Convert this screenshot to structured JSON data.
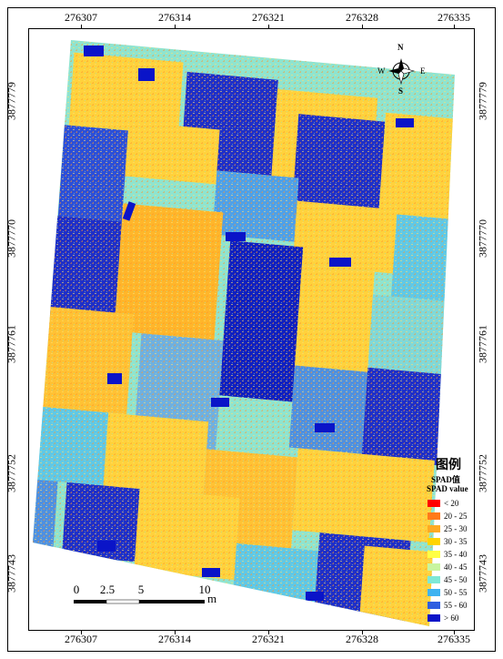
{
  "map": {
    "x_ticks": [
      "276307",
      "276314",
      "276321",
      "276328",
      "276335"
    ],
    "y_ticks": [
      "3877779",
      "3877770",
      "3877761",
      "3877752",
      "3877743"
    ]
  },
  "north_arrow": {
    "n": "N",
    "s": "S",
    "e": "E",
    "w": "W"
  },
  "legend": {
    "title": "图例",
    "subtitle_cn": "SPAD值",
    "subtitle_en": "SPAD value",
    "items": [
      {
        "label": "< 20",
        "color": "#ff0000"
      },
      {
        "label": "20 - 25",
        "color": "#ff7a1a"
      },
      {
        "label": "25 - 30",
        "color": "#ffaa22"
      },
      {
        "label": "30 - 35",
        "color": "#ffd400"
      },
      {
        "label": "35 - 40",
        "color": "#ffff44"
      },
      {
        "label": "40 - 45",
        "color": "#c8f5a0"
      },
      {
        "label": "45 - 50",
        "color": "#7ee8d6"
      },
      {
        "label": "50 - 55",
        "color": "#3fb3f0"
      },
      {
        "label": "55 - 60",
        "color": "#2f5fe0"
      },
      {
        "label": "> 60",
        "color": "#0a14c8"
      }
    ]
  },
  "scale_bar": {
    "labels": [
      "0",
      "2.5",
      "5",
      "10"
    ],
    "unit": "m"
  }
}
